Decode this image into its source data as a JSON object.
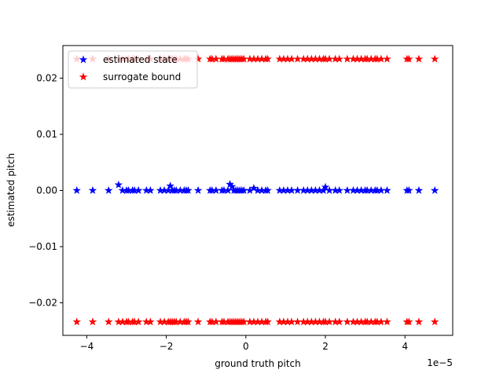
{
  "chart_data": {
    "type": "scatter",
    "xlabel": "ground truth pitch",
    "ylabel": "estimated pitch",
    "x_offset_label": "1e−5",
    "xlim": [
      -4.6,
      5.2
    ],
    "ylim": [
      -0.0258,
      0.0258
    ],
    "x_ticks": [
      -4,
      -2,
      0,
      2,
      4
    ],
    "x_tick_labels": [
      "−4",
      "−2",
      "0",
      "2",
      "4"
    ],
    "y_ticks": [
      -0.02,
      -0.01,
      0.0,
      0.01,
      0.02
    ],
    "y_tick_labels": [
      "−0.02",
      "−0.01",
      "0.00",
      "0.01",
      "0.02"
    ],
    "grid": false,
    "legend_position": "upper-left",
    "x": [
      -4.25,
      -3.85,
      -3.45,
      -3.2,
      -3.1,
      -3.0,
      -2.95,
      -2.85,
      -2.8,
      -2.7,
      -2.5,
      -2.4,
      -2.15,
      -2.05,
      -1.95,
      -1.9,
      -1.85,
      -1.8,
      -1.75,
      -1.65,
      -1.55,
      -1.5,
      -1.45,
      -1.2,
      -0.9,
      -0.85,
      -0.75,
      -0.6,
      -0.55,
      -0.45,
      -0.4,
      -0.35,
      -0.3,
      -0.25,
      -0.2,
      -0.15,
      -0.1,
      -0.05,
      0.1,
      0.2,
      0.3,
      0.4,
      0.5,
      0.55,
      0.85,
      0.95,
      1.05,
      1.15,
      1.3,
      1.45,
      1.55,
      1.65,
      1.75,
      1.85,
      1.95,
      2.0,
      2.1,
      2.25,
      2.35,
      2.55,
      2.7,
      2.8,
      2.9,
      3.0,
      3.05,
      3.15,
      3.25,
      3.3,
      3.4,
      3.55,
      4.05,
      4.1,
      4.35,
      4.75
    ],
    "series": [
      {
        "name": "estimated state",
        "color": "#0000ff",
        "marker": "star",
        "y": [
          0.0,
          0.0,
          0.0,
          0.001,
          0.0,
          0.0,
          0.0,
          0.0,
          0.0,
          0.0,
          0.0,
          0.0,
          0.0,
          0.0,
          0.0,
          0.0008,
          0.0,
          0.0,
          0.0,
          0.0,
          0.0,
          0.0,
          0.0,
          0.0,
          0.0,
          0.0,
          0.0,
          0.0,
          0.0,
          0.0,
          0.0011,
          0.0007,
          0.0,
          0.0,
          0.0,
          0.0,
          0.0,
          0.0,
          0.0,
          0.0004,
          0.0,
          0.0,
          0.0,
          0.0,
          0.0,
          0.0,
          0.0,
          0.0,
          0.0,
          0.0,
          0.0,
          0.0,
          0.0,
          0.0,
          0.0,
          0.0006,
          0.0,
          0.0,
          0.0,
          0.0,
          0.0,
          0.0,
          0.0,
          0.0,
          0.0,
          0.0,
          0.0,
          0.0,
          0.0,
          0.0,
          0.0,
          0.0,
          0.0,
          0.0
        ]
      },
      {
        "name": "surrogate bound",
        "color": "#ff0000",
        "marker": "star",
        "y_upper": 0.0234,
        "y_lower": -0.0234
      }
    ]
  }
}
